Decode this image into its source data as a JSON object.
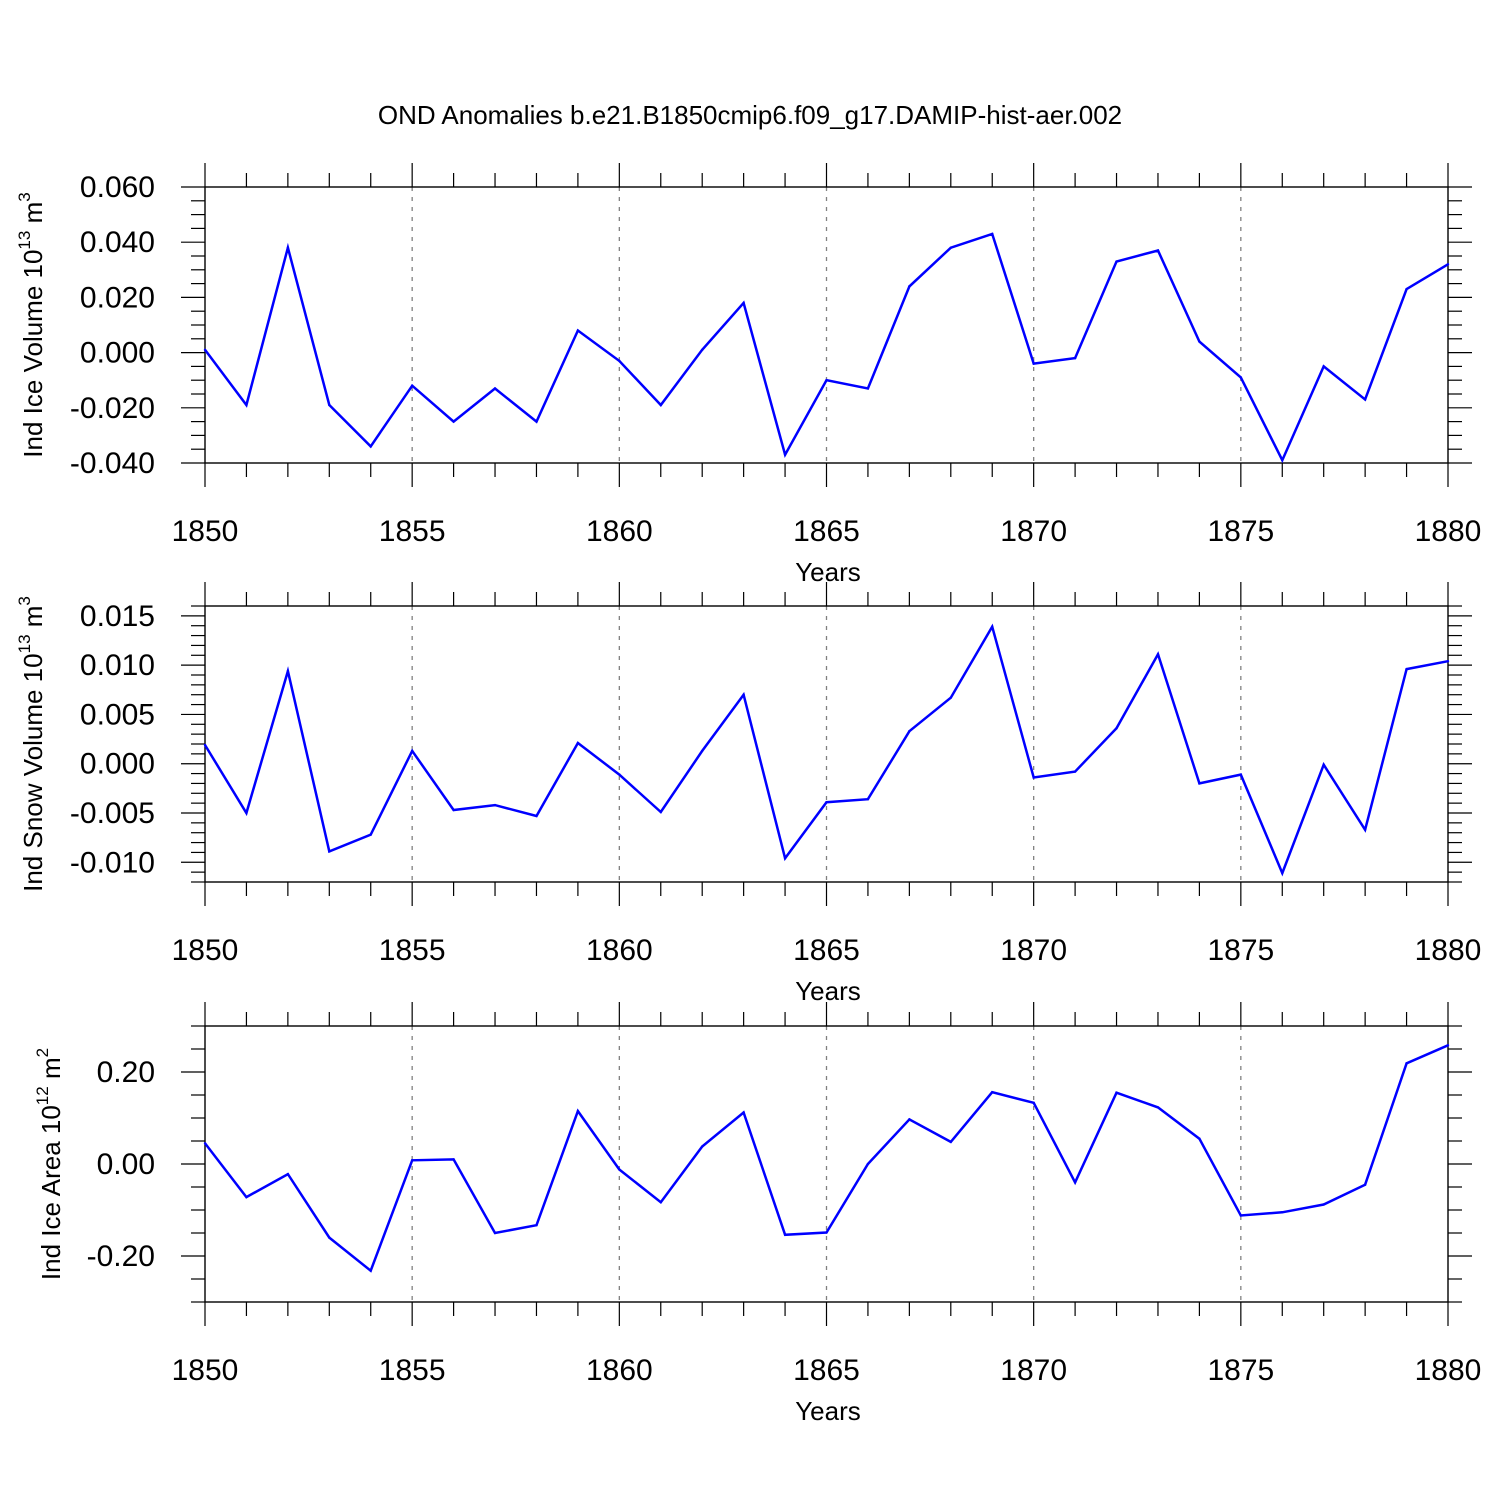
{
  "title": "OND Anomalies b.e21.B1850cmip6.f09_g17.DAMIP-hist-aer.002",
  "colors": {
    "series": "#0000ff",
    "grid": "#808080",
    "axis": "#000000"
  },
  "chart_data": [
    {
      "type": "line",
      "ylabel": "Ind Ice Volume 10",
      "ylabel_exp": "13",
      "ylabel_unit": " m",
      "ylabel_unit_exp": "3",
      "xlabel": "Years",
      "xlim": [
        1850,
        1880
      ],
      "ylim": [
        -0.04,
        0.06
      ],
      "ticks": [
        {
          "value": 0.06,
          "label": "0.060"
        },
        {
          "value": 0.04,
          "label": "0.040"
        },
        {
          "value": 0.02,
          "label": "0.020"
        },
        {
          "value": 0.0,
          "label": "0.000"
        },
        {
          "value": -0.02,
          "label": "-0.020"
        },
        {
          "value": -0.04,
          "label": "-0.040"
        }
      ],
      "minor_step": 0.005,
      "xticks": [
        {
          "value": 1850,
          "label": "1850"
        },
        {
          "value": 1855,
          "label": "1855"
        },
        {
          "value": 1860,
          "label": "1860"
        },
        {
          "value": 1865,
          "label": "1865"
        },
        {
          "value": 1870,
          "label": "1870"
        },
        {
          "value": 1875,
          "label": "1875"
        },
        {
          "value": 1880,
          "label": "1880"
        }
      ],
      "grid_x": [
        1855,
        1860,
        1865,
        1870,
        1875
      ],
      "x": [
        1850,
        1851,
        1852,
        1853,
        1854,
        1855,
        1856,
        1857,
        1858,
        1859,
        1860,
        1861,
        1862,
        1863,
        1864,
        1865,
        1866,
        1867,
        1868,
        1869,
        1870,
        1871,
        1872,
        1873,
        1874,
        1875,
        1876,
        1877,
        1878,
        1879,
        1880
      ],
      "values": [
        0.001,
        -0.019,
        0.038,
        -0.019,
        -0.034,
        -0.012,
        -0.025,
        -0.013,
        -0.025,
        0.008,
        -0.003,
        -0.019,
        0.001,
        0.018,
        -0.037,
        -0.01,
        -0.013,
        0.024,
        0.038,
        0.043,
        -0.004,
        -0.002,
        0.033,
        0.037,
        0.004,
        -0.009,
        -0.039,
        -0.005,
        -0.017,
        0.023,
        0.032
      ]
    },
    {
      "type": "line",
      "ylabel": "Ind Snow Volume 10",
      "ylabel_exp": "13",
      "ylabel_unit": " m",
      "ylabel_unit_exp": "3",
      "xlabel": "Years",
      "xlim": [
        1850,
        1880
      ],
      "ylim": [
        -0.012,
        0.016
      ],
      "ticks": [
        {
          "value": 0.015,
          "label": "0.015"
        },
        {
          "value": 0.01,
          "label": "0.010"
        },
        {
          "value": 0.005,
          "label": "0.005"
        },
        {
          "value": 0.0,
          "label": "0.000"
        },
        {
          "value": -0.005,
          "label": "-0.005"
        },
        {
          "value": -0.01,
          "label": "-0.010"
        }
      ],
      "minor_step": 0.001,
      "xticks": [
        {
          "value": 1850,
          "label": "1850"
        },
        {
          "value": 1855,
          "label": "1855"
        },
        {
          "value": 1860,
          "label": "1860"
        },
        {
          "value": 1865,
          "label": "1865"
        },
        {
          "value": 1870,
          "label": "1870"
        },
        {
          "value": 1875,
          "label": "1875"
        },
        {
          "value": 1880,
          "label": "1880"
        }
      ],
      "grid_x": [
        1855,
        1860,
        1865,
        1870,
        1875
      ],
      "x": [
        1850,
        1851,
        1852,
        1853,
        1854,
        1855,
        1856,
        1857,
        1858,
        1859,
        1860,
        1861,
        1862,
        1863,
        1864,
        1865,
        1866,
        1867,
        1868,
        1869,
        1870,
        1871,
        1872,
        1873,
        1874,
        1875,
        1876,
        1877,
        1878,
        1879,
        1880
      ],
      "values": [
        0.0019,
        -0.005,
        0.0094,
        -0.0089,
        -0.0072,
        0.0013,
        -0.0047,
        -0.0042,
        -0.0053,
        0.0021,
        -0.0011,
        -0.0049,
        0.0013,
        0.007,
        -0.0096,
        -0.0039,
        -0.0036,
        0.0033,
        0.0067,
        0.0139,
        -0.0014,
        -0.0008,
        0.0036,
        0.0111,
        -0.002,
        -0.0011,
        -0.0111,
        -0.0001,
        -0.0067,
        0.0096,
        0.0104
      ]
    },
    {
      "type": "line",
      "ylabel": "Ind Ice Area 10",
      "ylabel_exp": "12",
      "ylabel_unit": " m",
      "ylabel_unit_exp": "2",
      "xlabel": "Years",
      "xlim": [
        1850,
        1880
      ],
      "ylim": [
        -0.3,
        0.3
      ],
      "ticks": [
        {
          "value": 0.2,
          "label": "0.20"
        },
        {
          "value": 0.0,
          "label": "0.00"
        },
        {
          "value": -0.2,
          "label": "-0.20"
        }
      ],
      "minor_step": 0.05,
      "xticks": [
        {
          "value": 1850,
          "label": "1850"
        },
        {
          "value": 1855,
          "label": "1855"
        },
        {
          "value": 1860,
          "label": "1860"
        },
        {
          "value": 1865,
          "label": "1865"
        },
        {
          "value": 1870,
          "label": "1870"
        },
        {
          "value": 1875,
          "label": "1875"
        },
        {
          "value": 1880,
          "label": "1880"
        }
      ],
      "grid_x": [
        1855,
        1860,
        1865,
        1870,
        1875
      ],
      "x": [
        1850,
        1851,
        1852,
        1853,
        1854,
        1855,
        1856,
        1857,
        1858,
        1859,
        1860,
        1861,
        1862,
        1863,
        1864,
        1865,
        1866,
        1867,
        1868,
        1869,
        1870,
        1871,
        1872,
        1873,
        1874,
        1875,
        1876,
        1877,
        1878,
        1879,
        1880
      ],
      "values": [
        0.045,
        -0.072,
        -0.022,
        -0.16,
        -0.232,
        0.008,
        0.01,
        -0.15,
        -0.133,
        0.115,
        -0.012,
        -0.083,
        0.038,
        0.112,
        -0.154,
        -0.149,
        0.0,
        0.097,
        0.048,
        0.156,
        0.133,
        -0.04,
        0.155,
        0.123,
        0.055,
        -0.112,
        -0.105,
        -0.088,
        -0.045,
        0.219,
        0.258
      ]
    }
  ]
}
